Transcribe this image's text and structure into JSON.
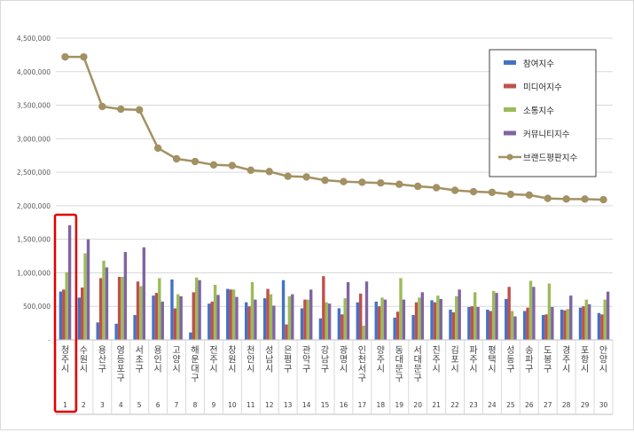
{
  "chart_data": {
    "type": "bar",
    "ylim": [
      0,
      4500000
    ],
    "yticks": [
      {
        "value": 0,
        "label": "-"
      },
      {
        "value": 500000,
        "label": "500,000"
      },
      {
        "value": 1000000,
        "label": "1,000,000"
      },
      {
        "value": 1500000,
        "label": "1,500,000"
      },
      {
        "value": 2000000,
        "label": "2,000,000"
      },
      {
        "value": 2500000,
        "label": "2,500,000"
      },
      {
        "value": 3000000,
        "label": "3,000,000"
      },
      {
        "value": 3500000,
        "label": "3,500,000"
      },
      {
        "value": 4000000,
        "label": "4,000,000"
      },
      {
        "value": 4500000,
        "label": "4,500,000"
      }
    ],
    "grid": true,
    "legend_position": "right",
    "highlighted_category_index": 0,
    "categories": [
      "청주시",
      "수원시",
      "용산구",
      "영등포구",
      "서초구",
      "용인시",
      "고양시",
      "해운대구",
      "전주시",
      "창원시",
      "천안시",
      "성남시",
      "은평구",
      "관악구",
      "강남구",
      "광명시",
      "인천서구",
      "양주시",
      "동대문구",
      "서대문구",
      "진주시",
      "김포시",
      "파주시",
      "평택시",
      "성동구",
      "송파구",
      "도봉구",
      "경주시",
      "포항시",
      "안양시"
    ],
    "ranks": [
      "1",
      "2",
      "3",
      "4",
      "5",
      "6",
      "7",
      "8",
      "9",
      "10",
      "11",
      "12",
      "13",
      "14",
      "15",
      "16",
      "17",
      "18",
      "19",
      "20",
      "21",
      "22",
      "23",
      "24",
      "25",
      "26",
      "27",
      "28",
      "29",
      "30"
    ],
    "series": [
      {
        "name": "참여지수",
        "type": "bar",
        "color": "#4472c4",
        "values": [
          720000,
          630000,
          260000,
          240000,
          370000,
          660000,
          900000,
          110000,
          540000,
          760000,
          560000,
          620000,
          890000,
          470000,
          320000,
          470000,
          560000,
          570000,
          330000,
          370000,
          590000,
          450000,
          490000,
          450000,
          610000,
          430000,
          370000,
          450000,
          480000,
          400000
        ]
      },
      {
        "name": "미디어지수",
        "type": "bar",
        "color": "#c0504d",
        "values": [
          750000,
          780000,
          920000,
          940000,
          870000,
          700000,
          470000,
          710000,
          570000,
          750000,
          500000,
          760000,
          230000,
          600000,
          950000,
          380000,
          690000,
          500000,
          420000,
          560000,
          560000,
          410000,
          500000,
          430000,
          790000,
          480000,
          380000,
          440000,
          500000,
          380000
        ]
      },
      {
        "name": "소통지수",
        "type": "bar",
        "color": "#9bbb59",
        "values": [
          1010000,
          1290000,
          1180000,
          940000,
          800000,
          920000,
          680000,
          930000,
          820000,
          750000,
          860000,
          680000,
          650000,
          600000,
          560000,
          620000,
          210000,
          630000,
          920000,
          630000,
          660000,
          650000,
          710000,
          730000,
          430000,
          880000,
          840000,
          460000,
          600000,
          600000
        ]
      },
      {
        "name": "커뮤니티지수",
        "type": "bar",
        "color": "#8064a2",
        "values": [
          1710000,
          1500000,
          1080000,
          1310000,
          1380000,
          570000,
          650000,
          890000,
          670000,
          640000,
          600000,
          510000,
          680000,
          750000,
          540000,
          860000,
          870000,
          600000,
          600000,
          710000,
          610000,
          750000,
          490000,
          700000,
          350000,
          790000,
          490000,
          660000,
          530000,
          720000
        ]
      },
      {
        "name": "브랜드평판지수",
        "type": "line",
        "color": "#a39163",
        "values": [
          4220000,
          4220000,
          3480000,
          3440000,
          3430000,
          2860000,
          2700000,
          2660000,
          2610000,
          2600000,
          2530000,
          2510000,
          2440000,
          2430000,
          2380000,
          2360000,
          2350000,
          2340000,
          2320000,
          2290000,
          2270000,
          2230000,
          2210000,
          2200000,
          2170000,
          2160000,
          2110000,
          2100000,
          2100000,
          2090000
        ]
      }
    ]
  }
}
